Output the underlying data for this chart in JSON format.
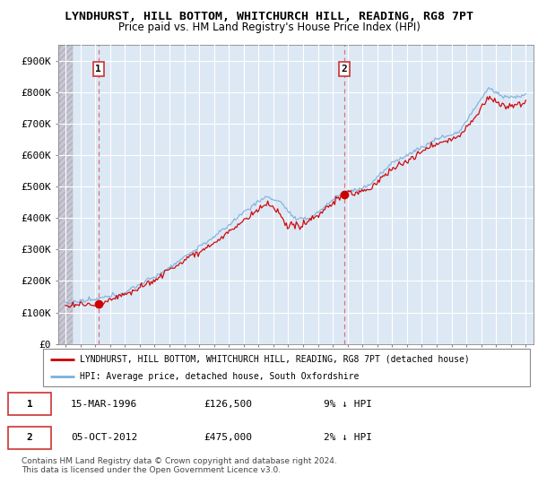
{
  "title": "LYNDHURST, HILL BOTTOM, WHITCHURCH HILL, READING, RG8 7PT",
  "subtitle": "Price paid vs. HM Land Registry's House Price Index (HPI)",
  "ylabel_ticks": [
    "£0",
    "£100K",
    "£200K",
    "£300K",
    "£400K",
    "£500K",
    "£600K",
    "£700K",
    "£800K",
    "£900K"
  ],
  "ylim": [
    0,
    950000
  ],
  "xlim_start": 1993.5,
  "xlim_end": 2025.5,
  "xticks": [
    1994,
    1995,
    1996,
    1997,
    1998,
    1999,
    2000,
    2001,
    2002,
    2003,
    2004,
    2005,
    2006,
    2007,
    2008,
    2009,
    2010,
    2011,
    2012,
    2013,
    2014,
    2015,
    2016,
    2017,
    2018,
    2019,
    2020,
    2021,
    2022,
    2023,
    2024,
    2025
  ],
  "sale1_x": 1996.21,
  "sale1_y": 126500,
  "sale1_label": "1",
  "sale2_x": 2012.76,
  "sale2_y": 475000,
  "sale2_label": "2",
  "hpi_color": "#7ab0dc",
  "price_color": "#cc0000",
  "marker_color": "#cc0000",
  "bg_color": "#ffffff",
  "plot_bg_color": "#dde8f5",
  "hatch_bg_color": "#c8c8d8",
  "legend_label1": "LYNDHURST, HILL BOTTOM, WHITCHURCH HILL, READING, RG8 7PT (detached house)",
  "legend_label2": "HPI: Average price, detached house, South Oxfordshire",
  "note1_label": "1",
  "note1_date": "15-MAR-1996",
  "note1_price": "£126,500",
  "note1_hpi": "9% ↓ HPI",
  "note2_label": "2",
  "note2_date": "05-OCT-2012",
  "note2_price": "£475,000",
  "note2_hpi": "2% ↓ HPI",
  "footer": "Contains HM Land Registry data © Crown copyright and database right 2024.\nThis data is licensed under the Open Government Licence v3.0.",
  "title_fontsize": 9.5,
  "subtitle_fontsize": 8.5
}
